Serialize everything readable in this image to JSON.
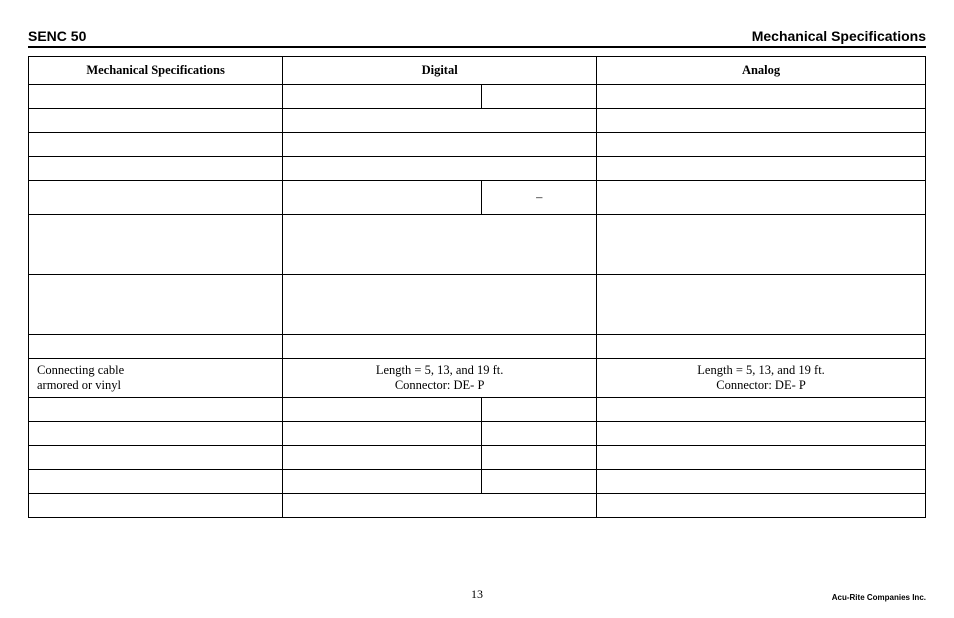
{
  "header": {
    "left": "SENC 50",
    "right": "Mechanical Specifications"
  },
  "table": {
    "columns": {
      "label": "Mechanical Specifications",
      "digital": "Digital",
      "analog": "Analog"
    },
    "rows": [
      {
        "h": "sm",
        "label": "",
        "d1": "",
        "d2": "",
        "a": "",
        "split": true
      },
      {
        "h": "sm",
        "label": "",
        "d": "",
        "a": "",
        "split": false
      },
      {
        "h": "sm",
        "label": "",
        "d": "",
        "a": "",
        "split": false
      },
      {
        "h": "sm",
        "label": "",
        "d": "",
        "a": "",
        "split": false
      },
      {
        "h": "md",
        "label": "",
        "d1": "",
        "d2": "–",
        "a": "",
        "split": true
      },
      {
        "h": "lg",
        "label": "",
        "d": "",
        "a": "",
        "split": false
      },
      {
        "h": "lg",
        "label": "",
        "d": "",
        "a": "",
        "split": false
      },
      {
        "h": "sm",
        "label": "",
        "d": "",
        "a": "",
        "split": false
      },
      {
        "h": "md",
        "label": "Connecting cable\narmored or vinyl",
        "d": "Length = 5, 13, and 19 ft.\nConnector: DE-  P",
        "a": "Length = 5, 13, and 19 ft.\nConnector: DE-  P",
        "split": false
      },
      {
        "h": "sm",
        "label": "",
        "d1": "",
        "d2": "",
        "a": "",
        "split": true
      },
      {
        "h": "sm",
        "label": "",
        "d1": "",
        "d2": "",
        "a": "",
        "split": true
      },
      {
        "h": "sm",
        "label": "",
        "d1": "",
        "d2": "",
        "a": "",
        "split": true
      },
      {
        "h": "sm",
        "label": "",
        "d1": "",
        "d2": "",
        "a": "",
        "split": true
      },
      {
        "h": "sm",
        "label": "",
        "d": "",
        "a": "",
        "split": false
      }
    ]
  },
  "footer": {
    "page_number": "13",
    "company": "Acu-Rite Companies Inc."
  },
  "style": {
    "font_serif": "Georgia",
    "font_sans": "Arial",
    "border_color": "#000000",
    "bg": "#ffffff"
  }
}
